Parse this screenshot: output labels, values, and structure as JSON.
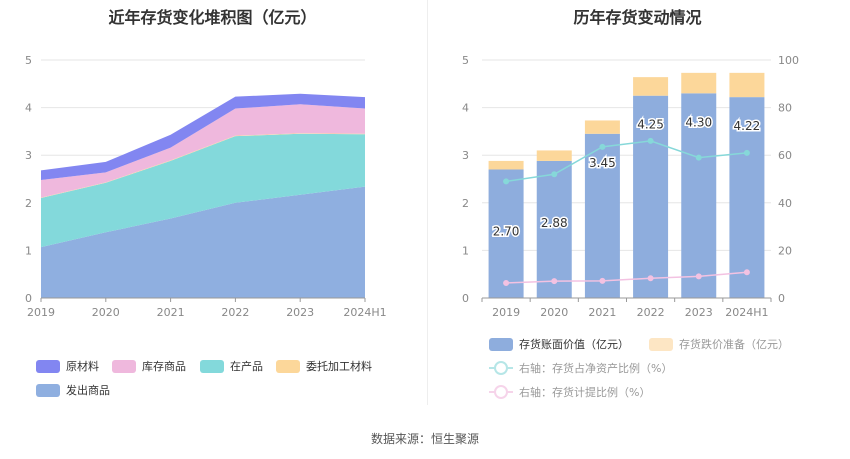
{
  "source": "数据来源：恒生聚源",
  "chart_data": [
    {
      "type": "area",
      "stacked": true,
      "title": "近年存货变化堆积图（亿元）",
      "categories": [
        "2019",
        "2020",
        "2021",
        "2022",
        "2023",
        "2024H1"
      ],
      "ylim": [
        0,
        5
      ],
      "yticks": [
        0,
        1,
        2,
        3,
        4,
        5
      ],
      "series": [
        {
          "name": "发出商品",
          "color": "#8fafe0",
          "values": [
            1.07,
            1.38,
            1.67,
            2.0,
            2.17,
            2.34
          ]
        },
        {
          "name": "在产品",
          "color": "#83d9db",
          "values": [
            1.03,
            1.04,
            1.21,
            1.4,
            1.28,
            1.1
          ]
        },
        {
          "name": "委托加工材料",
          "color": "#fcd79a",
          "values": [
            0.01,
            0.01,
            0.01,
            0.01,
            0.01,
            0.01
          ]
        },
        {
          "name": "库存商品",
          "color": "#efb8dd",
          "values": [
            0.37,
            0.21,
            0.27,
            0.57,
            0.61,
            0.53
          ]
        },
        {
          "name": "原材料",
          "color": "#8286f1",
          "values": [
            0.2,
            0.22,
            0.27,
            0.25,
            0.22,
            0.24
          ]
        }
      ],
      "legend_order": [
        "原材料",
        "库存商品",
        "在产品",
        "委托加工材料",
        "发出商品"
      ],
      "legend": "bottom"
    },
    {
      "type": "bar",
      "stacked": true,
      "title": "历年存货变动情况",
      "categories": [
        "2019",
        "2020",
        "2021",
        "2022",
        "2023",
        "2024H1"
      ],
      "ylim_left": [
        0,
        5
      ],
      "yticks_left": [
        0,
        1,
        2,
        3,
        4,
        5
      ],
      "ylim_right": [
        0,
        100
      ],
      "yticks_right": [
        0,
        20,
        40,
        60,
        80,
        100
      ],
      "series": [
        {
          "name": "存货账面价值（亿元）",
          "color": "#8eaddd",
          "axis": "left",
          "values": [
            2.7,
            2.88,
            3.45,
            4.25,
            4.3,
            4.22
          ],
          "labels": [
            "2.70",
            "2.88",
            "3.45",
            "4.25",
            "4.30",
            "4.22"
          ]
        },
        {
          "name": "存货跌价准备（亿元）",
          "color": "#fcd79a",
          "axis": "left",
          "values": [
            0.18,
            0.22,
            0.28,
            0.39,
            0.43,
            0.51
          ]
        },
        {
          "name": "右轴：存货占净资产比例（%）",
          "type": "line",
          "color": "#86d8d9",
          "axis": "right",
          "values": [
            49,
            52,
            63.5,
            66,
            59,
            61
          ]
        },
        {
          "name": "右轴：存货计提比例（%）",
          "type": "line",
          "color": "#f3c2e2",
          "axis": "right",
          "values": [
            6.3,
            7.1,
            7.2,
            8.3,
            9.1,
            10.8
          ]
        }
      ],
      "legend": "bottom"
    }
  ]
}
